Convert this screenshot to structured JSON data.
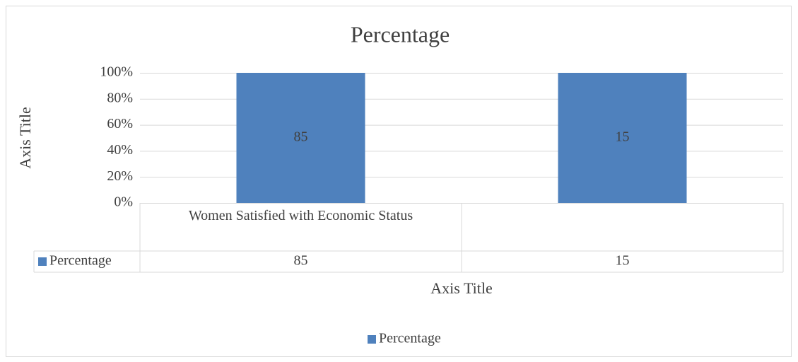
{
  "chart_data": {
    "type": "bar",
    "stacking": "percent",
    "title": "Percentage",
    "x_label": "Axis Title",
    "y_label": "Axis Title",
    "categories": [
      "Women Satisfied with Economic Status",
      null
    ],
    "series": [
      {
        "name": "Percentage",
        "color": "#4f81bd",
        "values": [
          85,
          15
        ]
      }
    ],
    "ylim": [
      0,
      100
    ],
    "yticks": [
      {
        "value": 0,
        "label": "0%"
      },
      {
        "value": 20,
        "label": "20%"
      },
      {
        "value": 40,
        "label": "40%"
      },
      {
        "value": 60,
        "label": "60%"
      },
      {
        "value": 80,
        "label": "80%"
      },
      {
        "value": 100,
        "label": "100%"
      }
    ],
    "grid": true,
    "data_table": true,
    "legend": "bottom"
  }
}
